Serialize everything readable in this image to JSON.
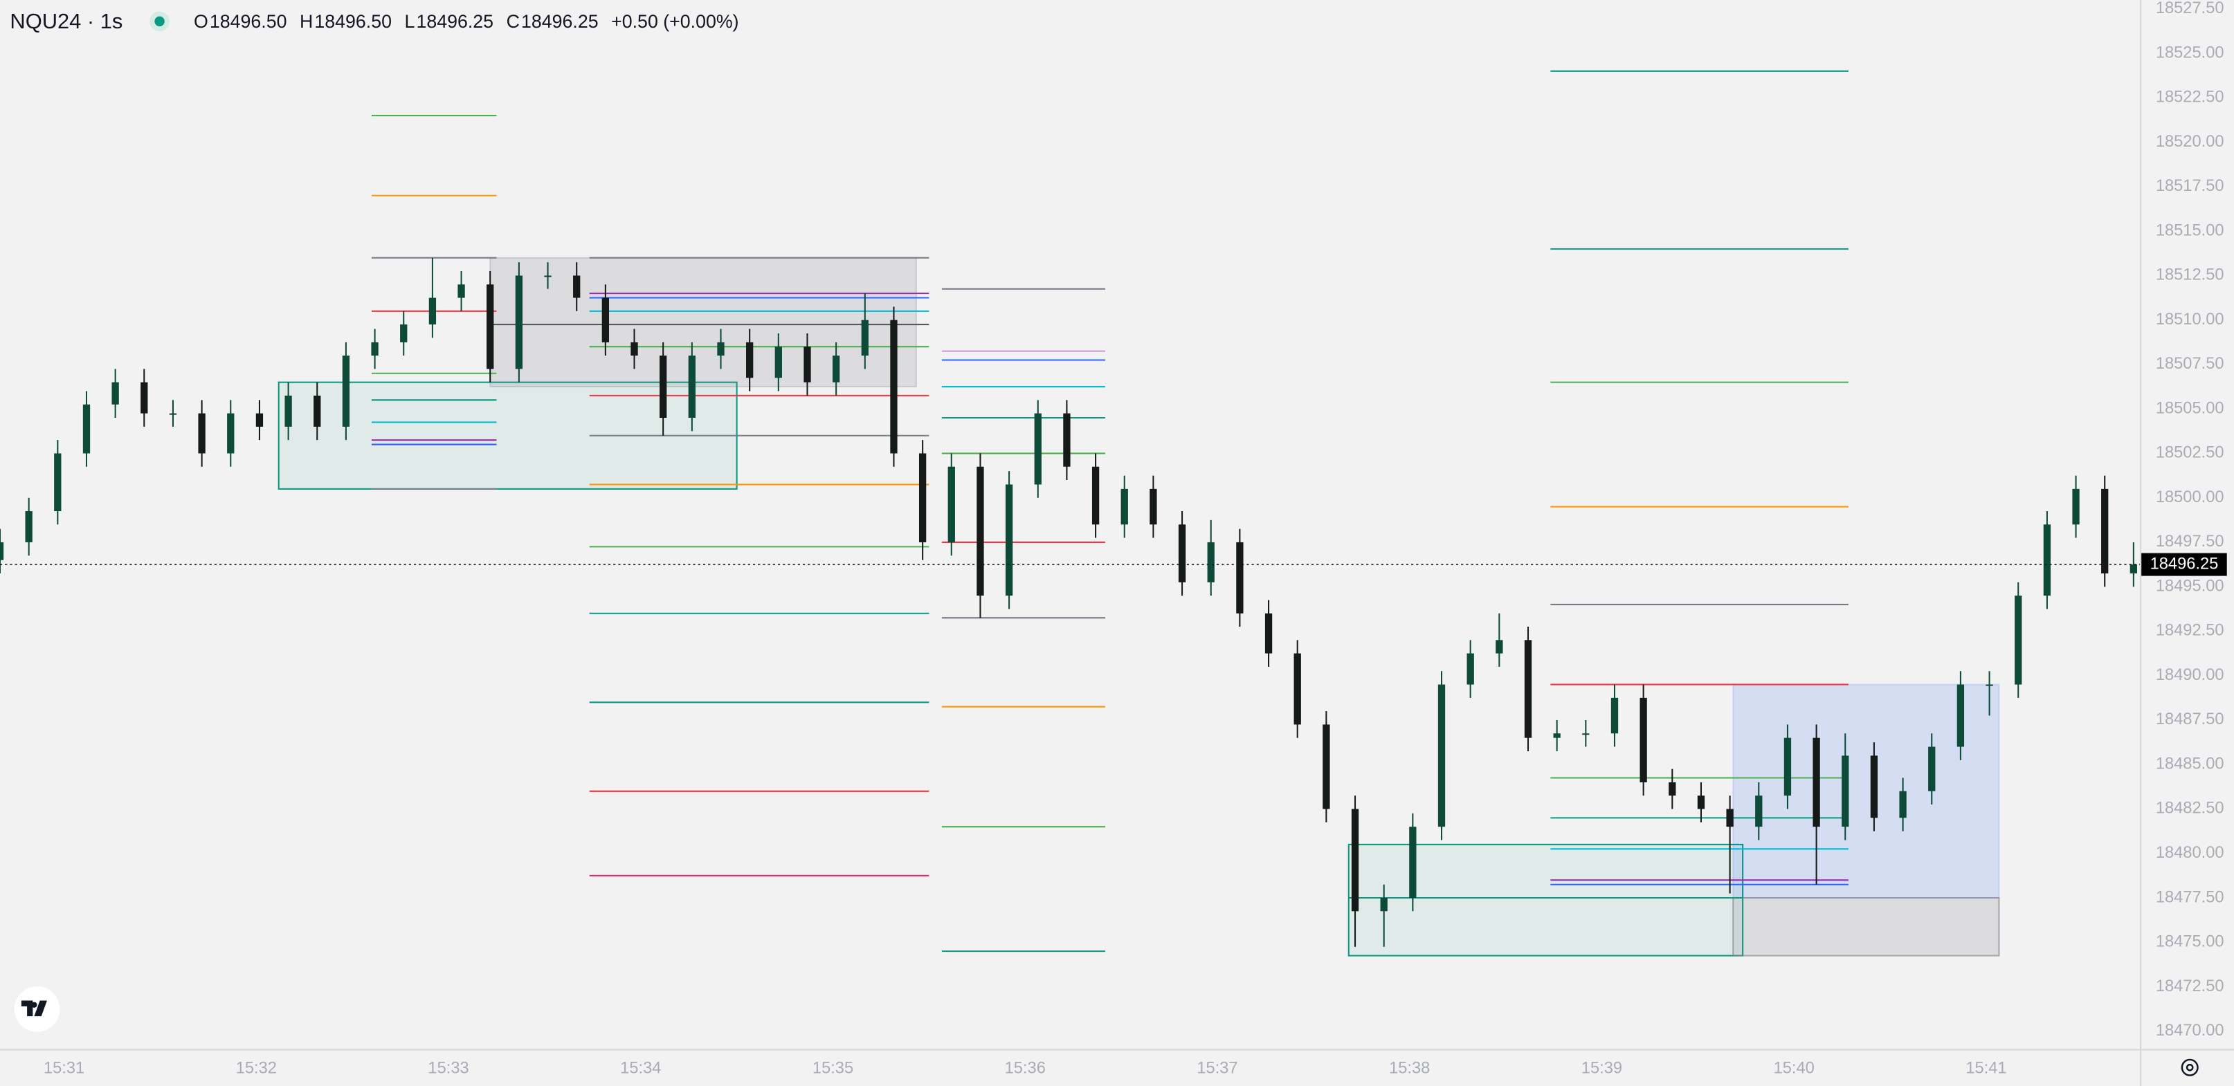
{
  "header": {
    "symbol": "NQU24 · 1s",
    "ohlc": [
      {
        "key": "O",
        "value": "18496.50"
      },
      {
        "key": "H",
        "value": "18496.50"
      },
      {
        "key": "L",
        "value": "18496.25"
      },
      {
        "key": "C",
        "value": "18496.25"
      }
    ],
    "change": "+0.50 (+0.00%)"
  },
  "chart_data": {
    "type": "candlestick",
    "up_color": "#0d4a38",
    "down_color": "#151a18",
    "xlim": [
      55840,
      56508
    ],
    "ylim": [
      18469.0,
      18528.0
    ],
    "xticks": [
      {
        "value": 55860,
        "label": "15:31"
      },
      {
        "value": 55920,
        "label": "15:32"
      },
      {
        "value": 55980,
        "label": "15:33"
      },
      {
        "value": 56040,
        "label": "15:34"
      },
      {
        "value": 56100,
        "label": "15:35"
      },
      {
        "value": 56160,
        "label": "15:36"
      },
      {
        "value": 56220,
        "label": "15:37"
      },
      {
        "value": 56280,
        "label": "15:38"
      },
      {
        "value": 56340,
        "label": "15:39"
      },
      {
        "value": 56400,
        "label": "15:40"
      },
      {
        "value": 56460,
        "label": "15:41"
      }
    ],
    "yticks": [
      {
        "value": 18470,
        "label": "18470.00"
      },
      {
        "value": 18472.5,
        "label": "18472.50"
      },
      {
        "value": 18475,
        "label": "18475.00"
      },
      {
        "value": 18477.5,
        "label": "18477.50"
      },
      {
        "value": 18480,
        "label": "18480.00"
      },
      {
        "value": 18482.5,
        "label": "18482.50"
      },
      {
        "value": 18485,
        "label": "18485.00"
      },
      {
        "value": 18487.5,
        "label": "18487.50"
      },
      {
        "value": 18490,
        "label": "18490.00"
      },
      {
        "value": 18492.5,
        "label": "18492.50"
      },
      {
        "value": 18495,
        "label": "18495.00"
      },
      {
        "value": 18497.5,
        "label": "18497.50"
      },
      {
        "value": 18500,
        "label": "18500.00"
      },
      {
        "value": 18502.5,
        "label": "18502.50"
      },
      {
        "value": 18505,
        "label": "18505.00"
      },
      {
        "value": 18507.5,
        "label": "18507.50"
      },
      {
        "value": 18510,
        "label": "18510.00"
      },
      {
        "value": 18512.5,
        "label": "18512.50"
      },
      {
        "value": 18515,
        "label": "18515.00"
      },
      {
        "value": 18517.5,
        "label": "18517.50"
      },
      {
        "value": 18520,
        "label": "18520.00"
      },
      {
        "value": 18522.5,
        "label": "18522.50"
      },
      {
        "value": 18525,
        "label": "18525.00"
      },
      {
        "value": 18527.5,
        "label": "18527.50"
      }
    ],
    "last_price": 18496.25,
    "x": [
      55840,
      55849,
      55858,
      55867,
      55876,
      55885,
      55894,
      55903,
      55912,
      55921,
      55930,
      55939,
      55948,
      55957,
      55966,
      55975,
      55984,
      55993,
      56002,
      56011,
      56020,
      56029,
      56038,
      56047,
      56056,
      56065,
      56074,
      56083,
      56092,
      56101,
      56110,
      56119,
      56128,
      56137,
      56146,
      56155,
      56164,
      56173,
      56182,
      56191,
      56200,
      56209,
      56218,
      56227,
      56236,
      56245,
      56254,
      56263,
      56272,
      56281,
      56290,
      56299,
      56308,
      56317,
      56326,
      56335,
      56344,
      56353,
      56362,
      56371,
      56380,
      56389,
      56398,
      56407,
      56416,
      56425,
      56434,
      56443,
      56452,
      56461,
      56470,
      56479,
      56488,
      56497,
      56506
    ],
    "open": [
      18496.5,
      18497.5,
      18499.25,
      18502.5,
      18505.25,
      18506.5,
      18504.75,
      18504.75,
      18502.5,
      18504.75,
      18504.0,
      18505.75,
      18504.0,
      18508.0,
      18508.75,
      18509.75,
      18511.25,
      18512.0,
      18507.25,
      18512.5,
      18512.5,
      18511.25,
      18508.75,
      18508.0,
      18504.5,
      18508.0,
      18508.75,
      18506.75,
      18508.5,
      18506.5,
      18508.0,
      18510.0,
      18502.5,
      18497.5,
      18501.75,
      18494.5,
      18500.75,
      18504.75,
      18501.75,
      18498.5,
      18500.5,
      18498.5,
      18495.25,
      18497.5,
      18493.5,
      18491.25,
      18487.25,
      18482.5,
      18476.75,
      18477.5,
      18481.5,
      18489.5,
      18491.25,
      18492.0,
      18486.5,
      18486.75,
      18486.75,
      18488.75,
      18484.0,
      18483.25,
      18482.5,
      18481.5,
      18483.25,
      18486.5,
      18481.5,
      18485.5,
      18482.0,
      18483.5,
      18486.0,
      18489.5,
      18489.5,
      18494.5,
      18498.5,
      18500.5,
      18495.75
    ],
    "high": [
      18498.25,
      18500.0,
      18503.25,
      18506.0,
      18507.25,
      18507.25,
      18505.5,
      18505.5,
      18505.5,
      18505.5,
      18506.5,
      18506.5,
      18508.75,
      18509.5,
      18510.5,
      18513.5,
      18512.75,
      18512.75,
      18513.25,
      18513.25,
      18513.25,
      18512.0,
      18509.5,
      18508.75,
      18508.75,
      18509.5,
      18509.5,
      18509.25,
      18509.25,
      18508.75,
      18511.5,
      18510.75,
      18503.25,
      18502.5,
      18502.5,
      18501.5,
      18505.5,
      18505.5,
      18502.5,
      18501.25,
      18501.25,
      18499.25,
      18498.75,
      18498.25,
      18494.25,
      18492.0,
      18488.0,
      18483.25,
      18478.25,
      18482.25,
      18490.25,
      18492.0,
      18493.5,
      18492.75,
      18487.5,
      18487.5,
      18489.5,
      18489.5,
      18484.75,
      18484.0,
      18483.25,
      18484.0,
      18487.25,
      18487.25,
      18486.75,
      18486.25,
      18484.25,
      18486.75,
      18490.25,
      18490.25,
      18495.25,
      18499.25,
      18501.25,
      18501.25,
      18497.5
    ],
    "low": [
      18495.75,
      18496.75,
      18498.5,
      18501.75,
      18504.5,
      18504.0,
      18504.0,
      18501.75,
      18501.75,
      18503.25,
      18503.25,
      18503.25,
      18503.25,
      18507.25,
      18508.0,
      18509.0,
      18510.5,
      18506.5,
      18506.5,
      18511.75,
      18510.5,
      18508.0,
      18507.25,
      18503.5,
      18503.75,
      18507.25,
      18506.0,
      18506.0,
      18505.75,
      18505.75,
      18507.25,
      18501.75,
      18496.5,
      18496.75,
      18493.25,
      18493.75,
      18500.0,
      18501.0,
      18497.75,
      18497.75,
      18497.75,
      18494.5,
      18494.5,
      18492.75,
      18490.5,
      18486.5,
      18481.75,
      18474.75,
      18474.75,
      18476.75,
      18480.75,
      18488.75,
      18490.5,
      18485.75,
      18485.75,
      18486.0,
      18486.0,
      18483.25,
      18482.5,
      18481.75,
      18477.75,
      18480.75,
      18482.5,
      18478.25,
      18480.75,
      18481.25,
      18481.25,
      18482.75,
      18485.25,
      18487.75,
      18488.75,
      18493.75,
      18497.75,
      18495.0,
      18495.0
    ],
    "close": [
      18497.5,
      18499.25,
      18502.5,
      18505.25,
      18506.5,
      18504.75,
      18504.75,
      18502.5,
      18504.75,
      18504.0,
      18505.75,
      18504.0,
      18508.0,
      18508.75,
      18509.75,
      18511.25,
      18512.0,
      18507.25,
      18512.5,
      18512.5,
      18511.25,
      18508.75,
      18508.0,
      18504.5,
      18508.0,
      18508.75,
      18506.75,
      18508.5,
      18506.5,
      18508.0,
      18510.0,
      18502.5,
      18497.5,
      18501.75,
      18494.5,
      18500.75,
      18504.75,
      18501.75,
      18498.5,
      18500.5,
      18498.5,
      18495.25,
      18497.5,
      18493.5,
      18491.25,
      18487.25,
      18482.5,
      18476.75,
      18477.5,
      18481.5,
      18489.5,
      18491.25,
      18492.0,
      18486.5,
      18486.75,
      18486.75,
      18488.75,
      18484.0,
      18483.25,
      18482.5,
      18481.5,
      18483.25,
      18486.5,
      18481.5,
      18485.5,
      18482.0,
      18483.5,
      18486.0,
      18489.5,
      18489.5,
      18494.5,
      18498.5,
      18500.5,
      18495.75,
      18496.25
    ],
    "boxes": [
      {
        "top": 18506.5,
        "bottom": 18500.5,
        "x0": 55927,
        "x1": 56070,
        "fill": "rgba(8,153,129,0.08)",
        "stroke": "#089981"
      },
      {
        "top": 18513.5,
        "bottom": 18506.25,
        "x0": 55993,
        "x1": 56126,
        "fill": "rgba(120,123,134,0.18)",
        "stroke": "rgba(120,123,134,0.25)"
      },
      {
        "top": 18480.5,
        "bottom": 18474.25,
        "x0": 56261,
        "x1": 56384,
        "fill": "rgba(8,153,129,0.08)",
        "stroke": "#089981"
      },
      {
        "top": 18489.5,
        "bottom": 18477.5,
        "x0": 56381,
        "x1": 56464,
        "fill": "rgba(41,98,255,0.14)",
        "stroke": "rgba(41,98,255,0.15)"
      },
      {
        "top": 18477.5,
        "bottom": 18474.25,
        "x0": 56381,
        "x1": 56464,
        "fill": "rgba(120,123,134,0.18)",
        "stroke": "rgba(120,123,134,0.6)"
      }
    ],
    "levels": [
      {
        "price": 18521.5,
        "x0": 55956,
        "x1": 55995,
        "color": "#4caf50"
      },
      {
        "price": 18517.0,
        "x0": 55956,
        "x1": 55995,
        "color": "#ff9800"
      },
      {
        "price": 18513.5,
        "x0": 55956,
        "x1": 55995,
        "color": "#787b86"
      },
      {
        "price": 18510.5,
        "x0": 55956,
        "x1": 55995,
        "color": "#f23645"
      },
      {
        "price": 18507.0,
        "x0": 55956,
        "x1": 55995,
        "color": "#4caf50"
      },
      {
        "price": 18505.5,
        "x0": 55956,
        "x1": 55995,
        "color": "#089981"
      },
      {
        "price": 18504.25,
        "x0": 55956,
        "x1": 55995,
        "color": "#00bcd4"
      },
      {
        "price": 18503.25,
        "x0": 55956,
        "x1": 55995,
        "color": "#9c27b0"
      },
      {
        "price": 18503.0,
        "x0": 55956,
        "x1": 55995,
        "color": "#2962ff"
      },
      {
        "price": 18500.5,
        "x0": 55956,
        "x1": 55995,
        "color": "#787b86"
      },
      {
        "price": 18513.5,
        "x0": 56024,
        "x1": 56130,
        "color": "#787b86"
      },
      {
        "price": 18511.5,
        "x0": 56024,
        "x1": 56130,
        "color": "#9c27b0"
      },
      {
        "price": 18511.25,
        "x0": 56024,
        "x1": 56130,
        "color": "#2962ff"
      },
      {
        "price": 18510.5,
        "x0": 56024,
        "x1": 56130,
        "color": "#00bcd4"
      },
      {
        "price": 18509.75,
        "x0": 55993,
        "x1": 56130,
        "color": "#555a63"
      },
      {
        "price": 18508.5,
        "x0": 56024,
        "x1": 56130,
        "color": "#4caf50"
      },
      {
        "price": 18505.75,
        "x0": 56024,
        "x1": 56130,
        "color": "#f23645"
      },
      {
        "price": 18503.5,
        "x0": 56024,
        "x1": 56130,
        "color": "#787b86"
      },
      {
        "price": 18500.75,
        "x0": 56024,
        "x1": 56130,
        "color": "#ff9800"
      },
      {
        "price": 18497.25,
        "x0": 56024,
        "x1": 56130,
        "color": "#4caf50"
      },
      {
        "price": 18493.5,
        "x0": 56024,
        "x1": 56130,
        "color": "#089981"
      },
      {
        "price": 18488.5,
        "x0": 56024,
        "x1": 56130,
        "color": "#089981"
      },
      {
        "price": 18483.5,
        "x0": 56024,
        "x1": 56130,
        "color": "#f23645"
      },
      {
        "price": 18478.75,
        "x0": 56024,
        "x1": 56130,
        "color": "#e91e63"
      },
      {
        "price": 18511.75,
        "x0": 56134,
        "x1": 56185,
        "color": "#787b86"
      },
      {
        "price": 18508.25,
        "x0": 56134,
        "x1": 56185,
        "color": "#ce93d8"
      },
      {
        "price": 18507.75,
        "x0": 56134,
        "x1": 56185,
        "color": "#2962ff"
      },
      {
        "price": 18506.25,
        "x0": 56134,
        "x1": 56185,
        "color": "#00bcd4"
      },
      {
        "price": 18504.5,
        "x0": 56134,
        "x1": 56185,
        "color": "#089981"
      },
      {
        "price": 18502.5,
        "x0": 56134,
        "x1": 56185,
        "color": "#4caf50"
      },
      {
        "price": 18497.5,
        "x0": 56134,
        "x1": 56185,
        "color": "#f23645"
      },
      {
        "price": 18493.25,
        "x0": 56134,
        "x1": 56185,
        "color": "#787b86"
      },
      {
        "price": 18488.25,
        "x0": 56134,
        "x1": 56185,
        "color": "#ff9800"
      },
      {
        "price": 18481.5,
        "x0": 56134,
        "x1": 56185,
        "color": "#4caf50"
      },
      {
        "price": 18474.5,
        "x0": 56134,
        "x1": 56185,
        "color": "#089981"
      },
      {
        "price": 18524.0,
        "x0": 56324,
        "x1": 56417,
        "color": "#089981"
      },
      {
        "price": 18514.0,
        "x0": 56324,
        "x1": 56417,
        "color": "#089981"
      },
      {
        "price": 18506.5,
        "x0": 56324,
        "x1": 56417,
        "color": "#4caf50"
      },
      {
        "price": 18499.5,
        "x0": 56324,
        "x1": 56417,
        "color": "#ff9800"
      },
      {
        "price": 18494.0,
        "x0": 56324,
        "x1": 56417,
        "color": "#787b86"
      },
      {
        "price": 18489.5,
        "x0": 56324,
        "x1": 56417,
        "color": "#f23645"
      },
      {
        "price": 18484.25,
        "x0": 56324,
        "x1": 56417,
        "color": "#4caf50"
      },
      {
        "price": 18482.0,
        "x0": 56324,
        "x1": 56417,
        "color": "#089981"
      },
      {
        "price": 18480.25,
        "x0": 56324,
        "x1": 56417,
        "color": "#00bcd4"
      },
      {
        "price": 18478.5,
        "x0": 56324,
        "x1": 56417,
        "color": "#9c27b0"
      },
      {
        "price": 18478.25,
        "x0": 56324,
        "x1": 56417,
        "color": "#2962ff"
      },
      {
        "price": 18477.5,
        "x0": 56261,
        "x1": 56384,
        "color": "#089981"
      }
    ]
  }
}
